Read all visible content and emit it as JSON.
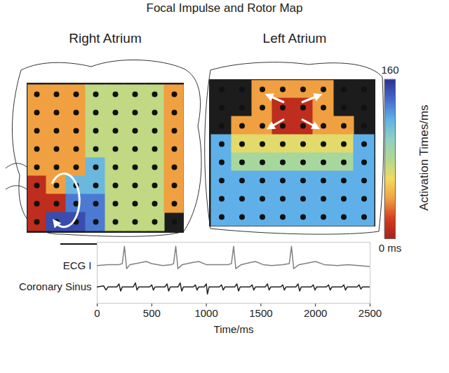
{
  "title": "Focal Impulse and Rotor Map",
  "colorbar": {
    "label": "Activation Times/ms",
    "range": [
      0,
      160
    ],
    "ticks": [
      {
        "value": 0,
        "label": "0 ms"
      },
      160
    ]
  },
  "chart_data": [
    {
      "type": "heatmap",
      "title": "Right Atrium",
      "cells": [
        [
          40,
          40,
          40,
          75,
          75,
          75,
          75,
          40
        ],
        [
          40,
          40,
          40,
          75,
          75,
          75,
          75,
          40
        ],
        [
          40,
          40,
          40,
          75,
          75,
          75,
          75,
          40
        ],
        [
          40,
          40,
          40,
          75,
          75,
          75,
          75,
          40
        ],
        [
          40,
          40,
          40,
          115,
          75,
          75,
          75,
          40
        ],
        [
          10,
          40,
          115,
          115,
          75,
          75,
          75,
          40
        ],
        [
          10,
          10,
          135,
          135,
          75,
          75,
          75,
          40
        ],
        [
          10,
          150,
          150,
          135,
          75,
          75,
          75,
          null
        ]
      ]
    },
    {
      "type": "heatmap",
      "title": "Left Atrium",
      "cells": [
        [
          null,
          null,
          40,
          40,
          40,
          40,
          null,
          null
        ],
        [
          null,
          null,
          40,
          10,
          10,
          40,
          null,
          null
        ],
        [
          null,
          40,
          40,
          10,
          10,
          40,
          40,
          null
        ],
        [
          120,
          65,
          65,
          65,
          65,
          65,
          65,
          120
        ],
        [
          120,
          85,
          85,
          85,
          85,
          85,
          85,
          120
        ],
        [
          120,
          120,
          120,
          120,
          120,
          120,
          120,
          120
        ],
        [
          120,
          120,
          120,
          120,
          120,
          120,
          120,
          120
        ],
        [
          120,
          120,
          120,
          120,
          120,
          120,
          120,
          120
        ]
      ]
    },
    {
      "type": "line",
      "xlabel": "Time/ms",
      "xlim": [
        0,
        2500
      ],
      "xticks": [
        0,
        500,
        1000,
        1500,
        2000,
        2500
      ],
      "ylim": [
        -1.8,
        1.2
      ],
      "tick_labels": "x",
      "series": [
        {
          "name": "ECG I",
          "color": "#808080",
          "x": [
            0,
            100,
            200,
            230,
            250,
            270,
            300,
            400,
            450,
            500,
            600,
            680,
            700,
            720,
            740,
            780,
            870,
            930,
            1000,
            1100,
            1200,
            1230,
            1250,
            1270,
            1320,
            1400,
            1450,
            1520,
            1600,
            1700,
            1760,
            1780,
            1800,
            1850,
            1950,
            2000,
            2080,
            2200,
            2300,
            2400,
            2500
          ],
          "values": [
            0.05,
            0.1,
            0.1,
            0.15,
            1.0,
            -0.1,
            0.1,
            0.2,
            0.25,
            0.15,
            0.05,
            0.1,
            0.15,
            1.0,
            -0.1,
            0.1,
            0.2,
            0.25,
            0.1,
            0.1,
            0.1,
            0.15,
            1.0,
            -0.1,
            0.1,
            0.2,
            0.25,
            0.1,
            0.05,
            0.1,
            0.15,
            1.0,
            -0.1,
            0.1,
            0.2,
            0.25,
            0.1,
            0.05,
            0.1,
            0.05,
            0.0
          ]
        },
        {
          "name": "Coronary Sinus",
          "color": "#222222",
          "x": [
            0,
            60,
            80,
            100,
            180,
            200,
            215,
            230,
            330,
            350,
            365,
            380,
            480,
            500,
            515,
            530,
            620,
            640,
            655,
            670,
            740,
            760,
            775,
            790,
            880,
            900,
            915,
            930,
            980,
            1000,
            1010,
            1025,
            1120,
            1140,
            1155,
            1170,
            1260,
            1280,
            1295,
            1310,
            1400,
            1420,
            1435,
            1450,
            1540,
            1560,
            1575,
            1590,
            1680,
            1700,
            1715,
            1730,
            1820,
            1840,
            1855,
            1870,
            1960,
            1980,
            1995,
            2010,
            2100,
            2120,
            2135,
            2150,
            2240,
            2260,
            2275,
            2290,
            2380,
            2400,
            2415,
            2430,
            2500
          ],
          "values": [
            -1.0,
            -0.95,
            -1.15,
            -1.0,
            -1.0,
            -0.85,
            -1.2,
            -1.0,
            -1.0,
            -0.8,
            -1.15,
            -1.0,
            -1.0,
            -0.9,
            -1.15,
            -1.0,
            -1.0,
            -0.85,
            -1.2,
            -1.0,
            -1.0,
            -0.8,
            -1.2,
            -1.0,
            -1.0,
            -0.9,
            -1.15,
            -1.0,
            -1.0,
            -0.85,
            -1.35,
            -1.0,
            -1.0,
            -0.9,
            -1.15,
            -1.0,
            -1.0,
            -0.85,
            -1.2,
            -1.0,
            -1.0,
            -0.9,
            -1.15,
            -1.0,
            -1.0,
            -0.85,
            -1.15,
            -1.0,
            -1.0,
            -0.9,
            -1.15,
            -1.0,
            -1.0,
            -0.85,
            -1.2,
            -1.0,
            -1.0,
            -0.9,
            -1.15,
            -1.0,
            -1.0,
            -0.9,
            -1.15,
            -1.0,
            -1.0,
            -0.9,
            -1.15,
            -1.0,
            -1.0,
            -0.9,
            -1.1,
            -1.0,
            -1.0
          ]
        }
      ]
    }
  ]
}
